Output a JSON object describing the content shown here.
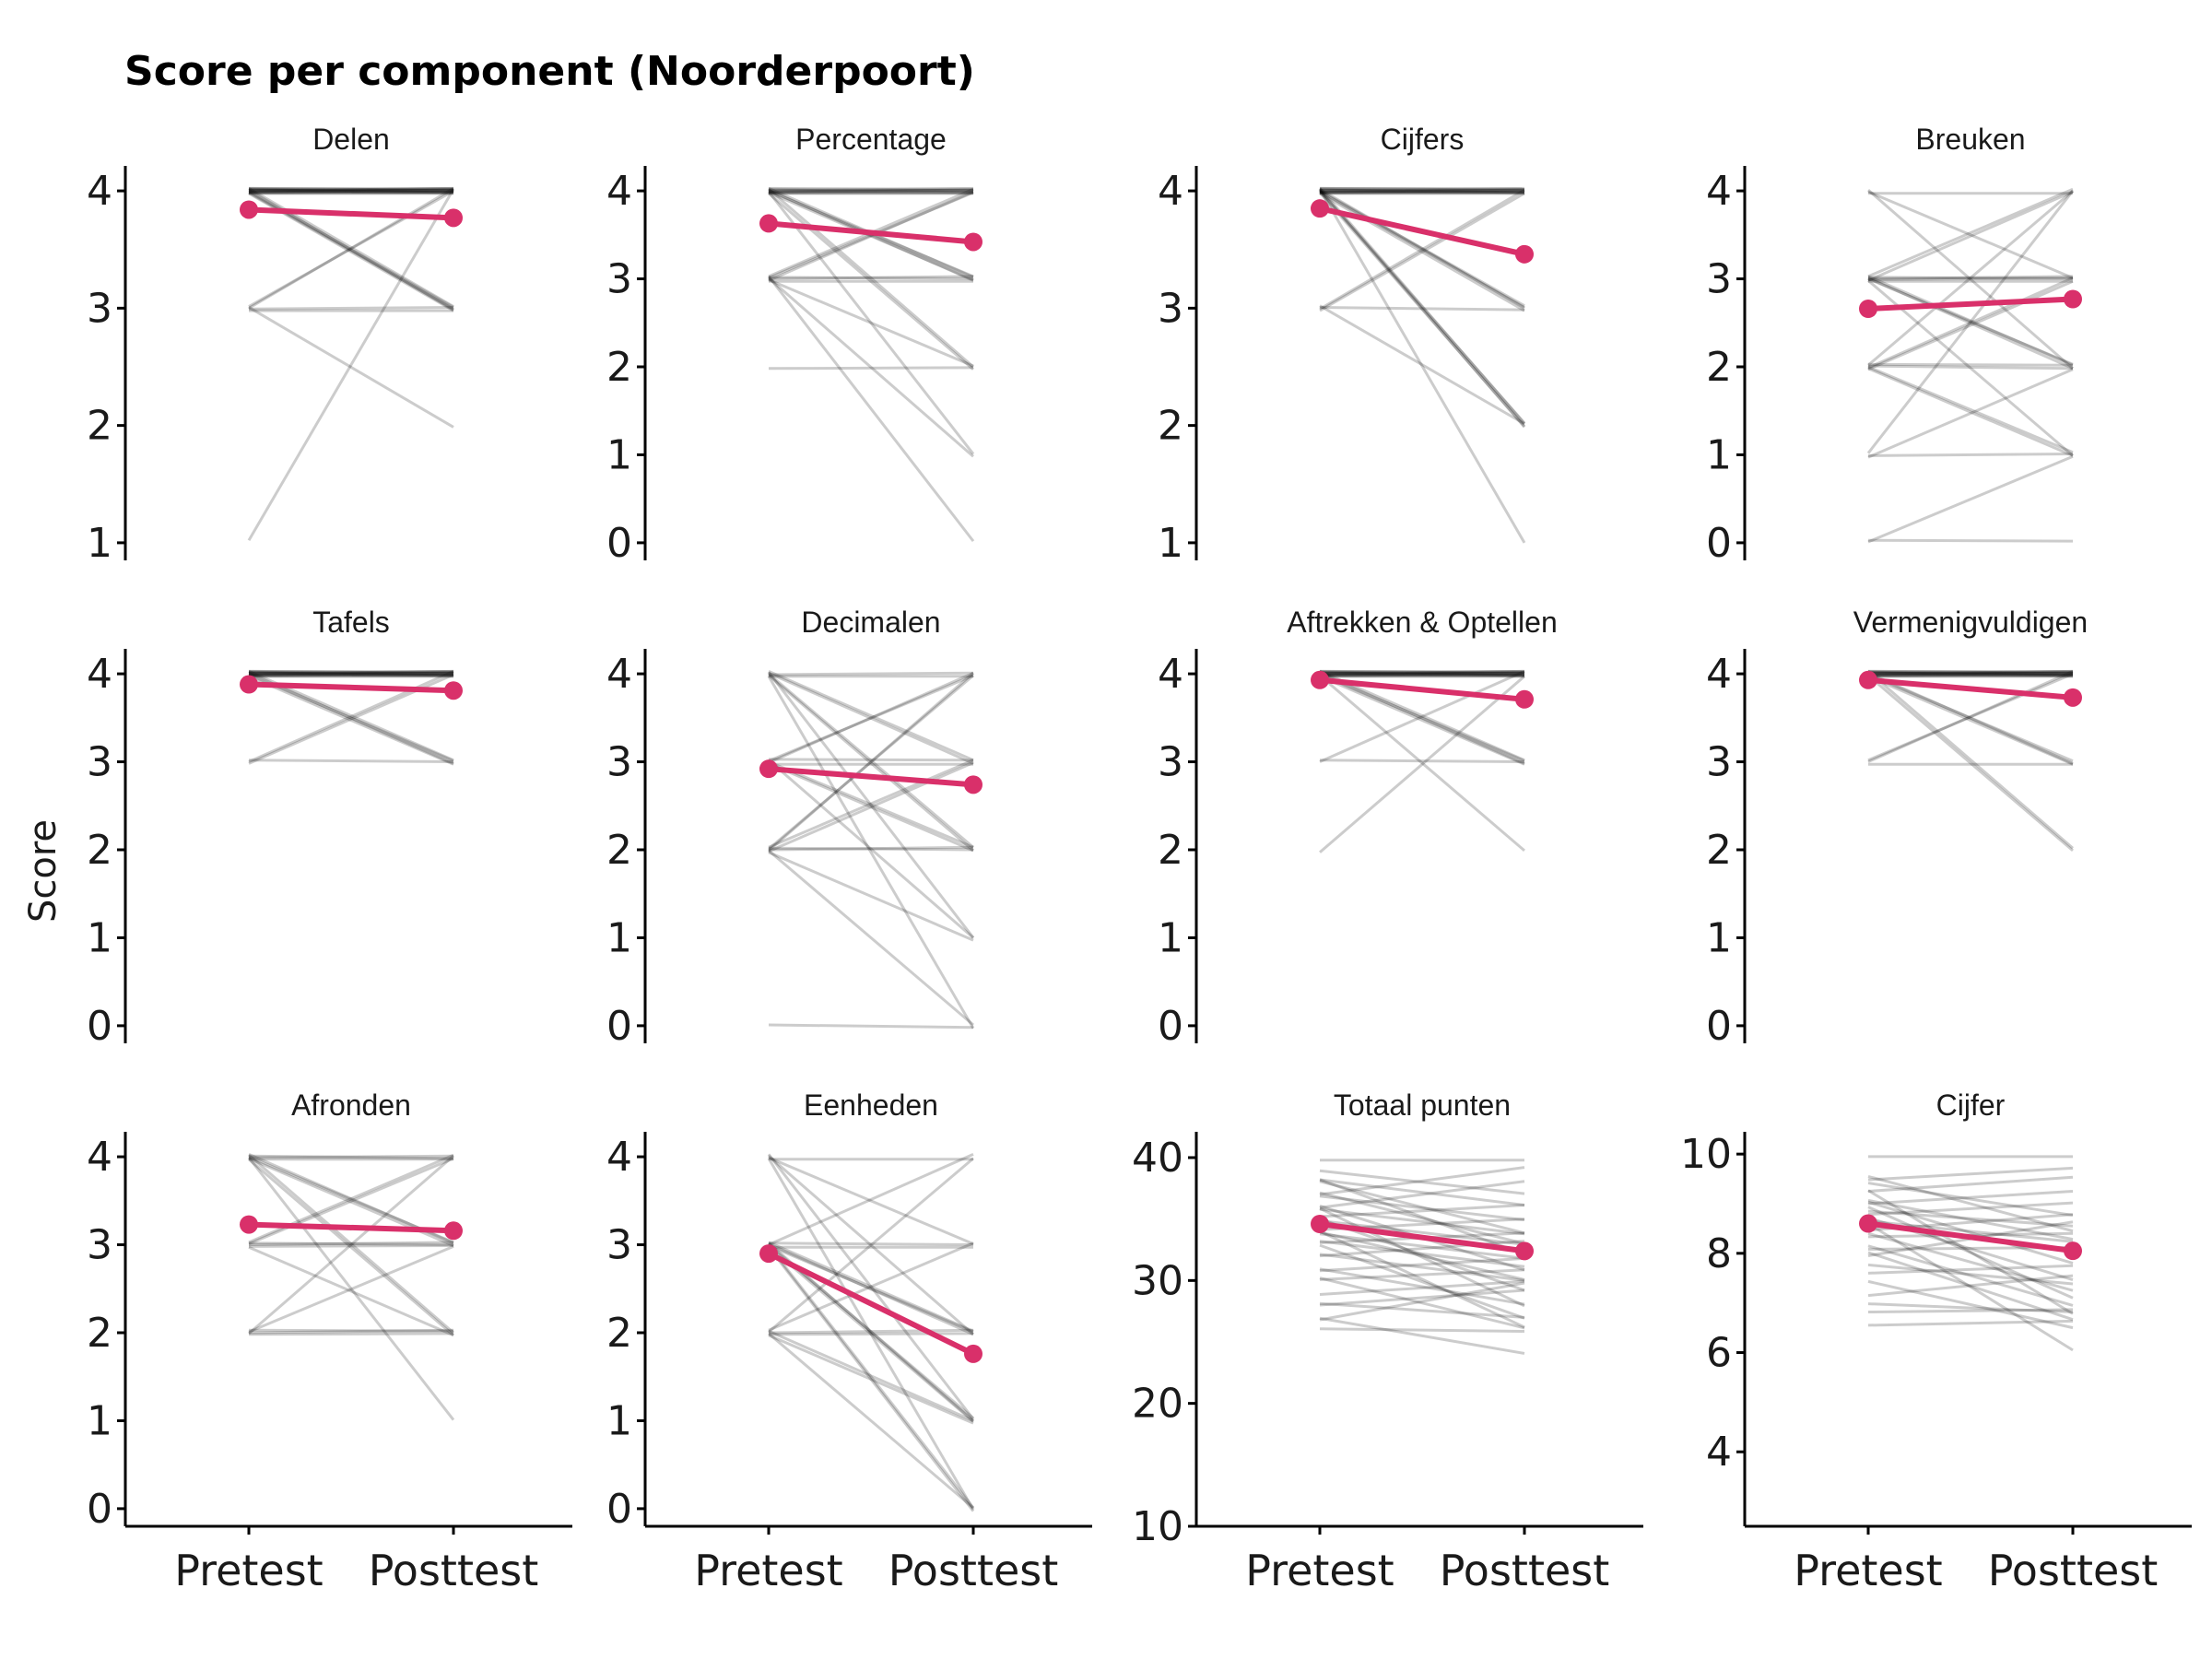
{
  "title": "Score per component (Noorderpoort)",
  "ylabel": "Score",
  "colors": {
    "individual": "#000000",
    "mean": "#d9306a"
  },
  "chart_data": {
    "type": "line",
    "title": "Score per component (Noorderpoort)",
    "ylabel": "Score",
    "xlabel": "",
    "x_categories": [
      "Pretest",
      "Posttest"
    ],
    "grid": false,
    "facets": [
      {
        "name": "Delen",
        "y_ticks": [
          1,
          2,
          3,
          4
        ],
        "ylim": [
          0.85,
          4.15
        ],
        "mean": [
          3.84,
          3.77
        ],
        "pairs": [
          [
            4,
            4
          ],
          [
            4,
            4
          ],
          [
            4,
            4
          ],
          [
            4,
            4
          ],
          [
            4,
            4
          ],
          [
            4,
            4
          ],
          [
            4,
            4
          ],
          [
            4,
            4
          ],
          [
            4,
            4
          ],
          [
            4,
            4
          ],
          [
            4,
            4
          ],
          [
            4,
            4
          ],
          [
            4,
            4
          ],
          [
            4,
            4
          ],
          [
            4,
            3
          ],
          [
            4,
            3
          ],
          [
            4,
            3
          ],
          [
            4,
            3
          ],
          [
            4,
            3
          ],
          [
            3,
            4
          ],
          [
            3,
            4
          ],
          [
            3,
            3
          ],
          [
            3,
            3
          ],
          [
            3,
            2
          ],
          [
            1,
            4
          ]
        ]
      },
      {
        "name": "Percentage",
        "y_ticks": [
          0,
          1,
          2,
          3,
          4
        ],
        "ylim": [
          -0.2,
          4.2
        ],
        "mean": [
          3.63,
          3.42
        ],
        "pairs": [
          [
            4,
            4
          ],
          [
            4,
            4
          ],
          [
            4,
            4
          ],
          [
            4,
            4
          ],
          [
            4,
            4
          ],
          [
            4,
            4
          ],
          [
            4,
            4
          ],
          [
            4,
            4
          ],
          [
            4,
            4
          ],
          [
            4,
            3
          ],
          [
            4,
            3
          ],
          [
            4,
            3
          ],
          [
            4,
            3
          ],
          [
            4,
            2
          ],
          [
            4,
            2
          ],
          [
            4,
            1
          ],
          [
            3,
            4
          ],
          [
            3,
            4
          ],
          [
            3,
            4
          ],
          [
            3,
            3
          ],
          [
            3,
            3
          ],
          [
            3,
            3
          ],
          [
            3,
            2
          ],
          [
            3,
            1
          ],
          [
            3,
            0
          ],
          [
            2,
            2
          ]
        ]
      },
      {
        "name": "Cijfers",
        "y_ticks": [
          1,
          2,
          3,
          4
        ],
        "ylim": [
          0.85,
          4.15
        ],
        "mean": [
          3.85,
          3.46
        ],
        "pairs": [
          [
            4,
            4
          ],
          [
            4,
            4
          ],
          [
            4,
            4
          ],
          [
            4,
            4
          ],
          [
            4,
            4
          ],
          [
            4,
            4
          ],
          [
            4,
            4
          ],
          [
            4,
            4
          ],
          [
            4,
            4
          ],
          [
            4,
            4
          ],
          [
            4,
            4
          ],
          [
            4,
            4
          ],
          [
            4,
            3
          ],
          [
            4,
            3
          ],
          [
            4,
            3
          ],
          [
            4,
            3
          ],
          [
            4,
            2
          ],
          [
            4,
            2
          ],
          [
            4,
            2
          ],
          [
            4,
            2
          ],
          [
            4,
            1
          ],
          [
            3,
            4
          ],
          [
            3,
            4
          ],
          [
            3,
            3
          ],
          [
            3,
            2
          ]
        ]
      },
      {
        "name": "Breuken",
        "y_ticks": [
          0,
          1,
          2,
          3,
          4
        ],
        "ylim": [
          -0.2,
          4.2
        ],
        "mean": [
          2.66,
          2.77
        ],
        "pairs": [
          [
            4,
            4
          ],
          [
            4,
            3
          ],
          [
            4,
            2
          ],
          [
            3,
            4
          ],
          [
            3,
            4
          ],
          [
            3,
            3
          ],
          [
            3,
            3
          ],
          [
            3,
            3
          ],
          [
            3,
            3
          ],
          [
            3,
            2
          ],
          [
            3,
            2
          ],
          [
            3,
            1
          ],
          [
            3,
            2
          ],
          [
            2,
            4
          ],
          [
            2,
            3
          ],
          [
            2,
            3
          ],
          [
            2,
            2
          ],
          [
            2,
            2
          ],
          [
            2,
            1
          ],
          [
            2,
            1
          ],
          [
            1,
            4
          ],
          [
            1,
            2
          ],
          [
            1,
            1
          ],
          [
            0,
            1
          ],
          [
            0,
            0
          ]
        ]
      },
      {
        "name": "Tafels",
        "y_ticks": [
          0,
          1,
          2,
          3,
          4
        ],
        "ylim": [
          -0.2,
          4.2
        ],
        "mean": [
          3.88,
          3.81
        ],
        "pairs": [
          [
            4,
            4
          ],
          [
            4,
            4
          ],
          [
            4,
            4
          ],
          [
            4,
            4
          ],
          [
            4,
            4
          ],
          [
            4,
            4
          ],
          [
            4,
            4
          ],
          [
            4,
            4
          ],
          [
            4,
            4
          ],
          [
            4,
            4
          ],
          [
            4,
            4
          ],
          [
            4,
            4
          ],
          [
            4,
            4
          ],
          [
            4,
            4
          ],
          [
            4,
            3
          ],
          [
            4,
            3
          ],
          [
            4,
            3
          ],
          [
            4,
            3
          ],
          [
            3,
            4
          ],
          [
            3,
            4
          ],
          [
            3,
            3
          ]
        ]
      },
      {
        "name": "Decimalen",
        "y_ticks": [
          0,
          1,
          2,
          3,
          4
        ],
        "ylim": [
          -0.2,
          4.2
        ],
        "mean": [
          2.92,
          2.74
        ],
        "pairs": [
          [
            4,
            4
          ],
          [
            4,
            4
          ],
          [
            4,
            3
          ],
          [
            4,
            3
          ],
          [
            4,
            2
          ],
          [
            4,
            2
          ],
          [
            4,
            1
          ],
          [
            4,
            0
          ],
          [
            3,
            4
          ],
          [
            3,
            4
          ],
          [
            3,
            3
          ],
          [
            3,
            2
          ],
          [
            3,
            2
          ],
          [
            3,
            1
          ],
          [
            3,
            3
          ],
          [
            2,
            4
          ],
          [
            2,
            4
          ],
          [
            2,
            3
          ],
          [
            2,
            3
          ],
          [
            2,
            2
          ],
          [
            2,
            2
          ],
          [
            2,
            1
          ],
          [
            2,
            0
          ],
          [
            0,
            0
          ]
        ]
      },
      {
        "name": "Aftrekken & Optellen",
        "y_ticks": [
          0,
          1,
          2,
          3,
          4
        ],
        "ylim": [
          -0.2,
          4.2
        ],
        "mean": [
          3.93,
          3.71
        ],
        "pairs": [
          [
            4,
            4
          ],
          [
            4,
            4
          ],
          [
            4,
            4
          ],
          [
            4,
            4
          ],
          [
            4,
            4
          ],
          [
            4,
            4
          ],
          [
            4,
            4
          ],
          [
            4,
            4
          ],
          [
            4,
            4
          ],
          [
            4,
            4
          ],
          [
            4,
            4
          ],
          [
            4,
            4
          ],
          [
            4,
            4
          ],
          [
            4,
            4
          ],
          [
            4,
            3
          ],
          [
            4,
            3
          ],
          [
            4,
            3
          ],
          [
            4,
            3
          ],
          [
            4,
            2
          ],
          [
            3,
            4
          ],
          [
            3,
            3
          ],
          [
            2,
            4
          ]
        ]
      },
      {
        "name": "Vermenigvuldigen",
        "y_ticks": [
          0,
          1,
          2,
          3,
          4
        ],
        "ylim": [
          -0.2,
          4.2
        ],
        "mean": [
          3.93,
          3.73
        ],
        "pairs": [
          [
            4,
            4
          ],
          [
            4,
            4
          ],
          [
            4,
            4
          ],
          [
            4,
            4
          ],
          [
            4,
            4
          ],
          [
            4,
            4
          ],
          [
            4,
            4
          ],
          [
            4,
            4
          ],
          [
            4,
            4
          ],
          [
            4,
            4
          ],
          [
            4,
            4
          ],
          [
            4,
            4
          ],
          [
            4,
            4
          ],
          [
            4,
            4
          ],
          [
            4,
            3
          ],
          [
            4,
            3
          ],
          [
            4,
            3
          ],
          [
            4,
            2
          ],
          [
            4,
            2
          ],
          [
            3,
            4
          ],
          [
            3,
            4
          ],
          [
            3,
            3
          ]
        ]
      },
      {
        "name": "Afronden",
        "y_ticks": [
          0,
          1,
          2,
          3,
          4
        ],
        "ylim": [
          -0.2,
          4.2
        ],
        "mean": [
          3.23,
          3.16
        ],
        "pairs": [
          [
            4,
            4
          ],
          [
            4,
            4
          ],
          [
            4,
            4
          ],
          [
            4,
            3
          ],
          [
            4,
            3
          ],
          [
            4,
            3
          ],
          [
            4,
            2
          ],
          [
            4,
            2
          ],
          [
            4,
            1
          ],
          [
            3,
            4
          ],
          [
            3,
            4
          ],
          [
            3,
            3
          ],
          [
            3,
            3
          ],
          [
            3,
            3
          ],
          [
            3,
            2
          ],
          [
            2,
            4
          ],
          [
            2,
            3
          ],
          [
            2,
            2
          ],
          [
            2,
            2
          ],
          [
            2,
            2
          ]
        ]
      },
      {
        "name": "Eenheden",
        "y_ticks": [
          0,
          1,
          2,
          3,
          4
        ],
        "ylim": [
          -0.2,
          4.2
        ],
        "mean": [
          2.9,
          1.76
        ],
        "pairs": [
          [
            4,
            4
          ],
          [
            4,
            3
          ],
          [
            4,
            2
          ],
          [
            4,
            1
          ],
          [
            4,
            0
          ],
          [
            3,
            4
          ],
          [
            3,
            3
          ],
          [
            3,
            3
          ],
          [
            3,
            2
          ],
          [
            3,
            2
          ],
          [
            3,
            2
          ],
          [
            3,
            1
          ],
          [
            3,
            1
          ],
          [
            3,
            1
          ],
          [
            3,
            0
          ],
          [
            3,
            0
          ],
          [
            2,
            4
          ],
          [
            2,
            3
          ],
          [
            2,
            2
          ],
          [
            2,
            2
          ],
          [
            2,
            1
          ],
          [
            2,
            1
          ],
          [
            2,
            0
          ]
        ]
      },
      {
        "name": "Totaal punten",
        "y_ticks": [
          10,
          20,
          30,
          40
        ],
        "ylim": [
          10,
          41.5
        ],
        "mean": [
          34.6,
          32.4
        ],
        "pairs": [
          [
            40,
            40
          ],
          [
            39,
            37
          ],
          [
            38,
            34
          ],
          [
            38,
            36
          ],
          [
            37,
            35
          ],
          [
            37,
            39
          ],
          [
            37,
            33
          ],
          [
            36,
            34
          ],
          [
            36,
            38
          ],
          [
            36,
            31
          ],
          [
            35,
            36
          ],
          [
            35,
            33
          ],
          [
            35,
            29
          ],
          [
            34,
            35
          ],
          [
            34,
            32
          ],
          [
            34,
            30
          ],
          [
            33,
            34
          ],
          [
            33,
            31
          ],
          [
            33,
            27
          ],
          [
            32,
            33
          ],
          [
            32,
            30
          ],
          [
            31,
            32
          ],
          [
            31,
            28
          ],
          [
            30,
            31
          ],
          [
            30,
            26
          ],
          [
            29,
            30
          ],
          [
            28,
            29
          ],
          [
            28,
            27
          ],
          [
            27,
            30
          ],
          [
            27,
            24
          ],
          [
            26,
            26
          ],
          [
            38,
            32
          ],
          [
            36,
            28
          ],
          [
            34,
            26
          ]
        ]
      },
      {
        "name": "Cijfer",
        "y_ticks": [
          4,
          6,
          8,
          10
        ],
        "ylim": [
          2.5,
          10.3
        ],
        "mean": [
          8.6,
          8.05
        ],
        "pairs": [
          [
            10,
            10
          ],
          [
            9.5,
            9.7
          ],
          [
            9.4,
            8.8
          ],
          [
            9.2,
            9.5
          ],
          [
            9.1,
            8.3
          ],
          [
            9,
            9.2
          ],
          [
            9,
            7.8
          ],
          [
            8.9,
            8.6
          ],
          [
            8.8,
            9
          ],
          [
            8.7,
            7.5
          ],
          [
            8.6,
            8.2
          ],
          [
            8.5,
            8.8
          ],
          [
            8.4,
            7.2
          ],
          [
            8.3,
            8.4
          ],
          [
            8.2,
            7
          ],
          [
            8.1,
            8.1
          ],
          [
            8,
            6.7
          ],
          [
            7.9,
            8.6
          ],
          [
            7.8,
            7.4
          ],
          [
            7.6,
            7.7
          ],
          [
            7.4,
            6.5
          ],
          [
            7.2,
            7.6
          ],
          [
            7,
            6.8
          ],
          [
            6.8,
            6.9
          ],
          [
            6.5,
            6.6
          ],
          [
            9.3,
            6.8
          ],
          [
            8.6,
            6
          ],
          [
            8.9,
            7.1
          ],
          [
            9.6,
            8.5
          ]
        ]
      }
    ]
  }
}
